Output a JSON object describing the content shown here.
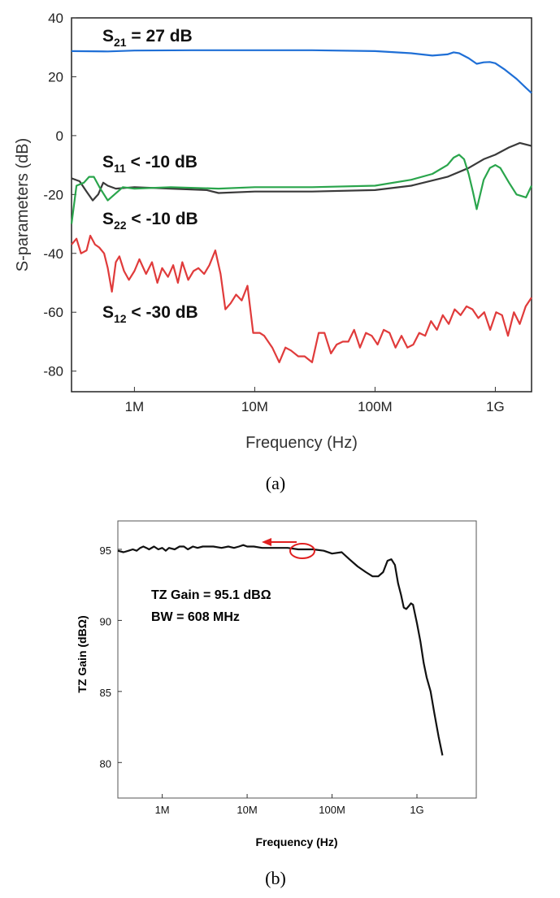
{
  "chart_data": [
    {
      "type": "line",
      "panel": "(a)",
      "xlabel": "Frequency (Hz)",
      "ylabel": "S-parameters (dB)",
      "x_scale": "log",
      "xlim": [
        300000,
        2000000000
      ],
      "ylim": [
        -87,
        40
      ],
      "x_ticks": [
        {
          "value": 1000000,
          "label": "1M"
        },
        {
          "value": 10000000,
          "label": "10M"
        },
        {
          "value": 100000000,
          "label": "100M"
        },
        {
          "value": 1000000000,
          "label": "1G"
        }
      ],
      "y_ticks": [
        40,
        20,
        0,
        -20,
        -40,
        -60,
        -80
      ],
      "annotations": [
        {
          "main": "S",
          "sub": "21",
          "rest": " = 27 dB"
        },
        {
          "main": "S",
          "sub": "11",
          "rest": " < -10 dB"
        },
        {
          "main": "S",
          "sub": "22",
          "rest": " < -10 dB"
        },
        {
          "main": "S",
          "sub": "12",
          "rest": " < -30 dB"
        }
      ],
      "series": [
        {
          "key": "S21",
          "color": "#1f6fd6",
          "x": [
            300000,
            600000,
            1000000,
            3000000,
            10000000,
            30000000,
            100000000,
            200000000,
            300000000,
            400000000,
            450000000,
            500000000,
            600000000,
            700000000,
            800000000,
            900000000,
            1000000000,
            1200000000,
            1500000000,
            1800000000,
            2000000000
          ],
          "y": [
            28.7,
            28.6,
            28.9,
            29.0,
            29.0,
            29.0,
            28.7,
            28.0,
            27.2,
            27.6,
            28.3,
            28.0,
            26.3,
            24.4,
            24.9,
            25.0,
            24.6,
            22.4,
            19.3,
            16.2,
            14.5
          ]
        },
        {
          "key": "S11",
          "color": "#3a3a3a",
          "x": [
            300000,
            350000,
            400000,
            450000,
            500000,
            550000,
            600000,
            700000,
            1000000,
            2000000,
            4000000,
            5000000,
            10000000,
            30000000,
            100000000,
            200000000,
            400000000,
            600000000,
            800000000,
            1000000000,
            1300000000,
            1600000000,
            2000000000
          ],
          "y": [
            -14.5,
            -15.5,
            -19.0,
            -22.0,
            -20.0,
            -16.0,
            -17.0,
            -18.0,
            -17.5,
            -18.0,
            -18.5,
            -19.5,
            -19.0,
            -19.0,
            -18.5,
            -17.0,
            -14.0,
            -11.0,
            -8.0,
            -6.5,
            -4.0,
            -2.5,
            -3.5
          ]
        },
        {
          "key": "S22",
          "color": "#2aa54c",
          "x": [
            300000,
            330000,
            380000,
            420000,
            460000,
            520000,
            600000,
            800000,
            1000000,
            2000000,
            5000000,
            10000000,
            30000000,
            100000000,
            200000000,
            300000000,
            400000000,
            450000000,
            500000000,
            550000000,
            600000000,
            650000000,
            700000000,
            800000000,
            900000000,
            1000000000,
            1100000000,
            1300000000,
            1500000000,
            1800000000,
            2000000000
          ],
          "y": [
            -30.0,
            -17.0,
            -16.0,
            -14.0,
            -14.0,
            -18.0,
            -22.0,
            -17.5,
            -18.0,
            -17.5,
            -18.0,
            -17.5,
            -17.5,
            -17.0,
            -15.0,
            -13.0,
            -10.0,
            -7.5,
            -6.5,
            -8.0,
            -13.0,
            -19.0,
            -25.0,
            -15.0,
            -11.0,
            -10.0,
            -11.0,
            -16.0,
            -20.0,
            -21.0,
            -17.0
          ]
        },
        {
          "key": "S12",
          "color": "#e03b3b",
          "x": [
            300000,
            330000,
            360000,
            400000,
            430000,
            470000,
            510000,
            560000,
            600000,
            650000,
            700000,
            750000,
            820000,
            900000,
            1000000,
            1100000,
            1250000,
            1400000,
            1550000,
            1700000,
            1900000,
            2100000,
            2300000,
            2500000,
            2800000,
            3100000,
            3400000,
            3800000,
            4200000,
            4700000,
            5200000,
            5700000,
            6300000,
            7000000,
            7800000,
            8700000,
            9700000,
            11000000,
            12000000,
            14000000,
            16000000,
            18000000,
            20000000,
            23000000,
            26000000,
            30000000,
            34000000,
            38000000,
            43000000,
            48000000,
            54000000,
            60000000,
            67000000,
            75000000,
            84000000,
            94000000,
            105000000,
            118000000,
            132000000,
            148000000,
            166000000,
            186000000,
            208000000,
            233000000,
            261000000,
            292000000,
            327000000,
            366000000,
            410000000,
            459000000,
            514000000,
            576000000,
            645000000,
            722000000,
            809000000,
            906000000,
            1015000000,
            1137000000,
            1273000000,
            1426000000,
            1597000000,
            1789000000,
            2000000000
          ],
          "y": [
            -37.0,
            -35.0,
            -40.0,
            -39.0,
            -34.0,
            -37.0,
            -38.0,
            -40.0,
            -45.0,
            -53.0,
            -43.0,
            -41.0,
            -46.0,
            -49.0,
            -46.0,
            -42.0,
            -47.0,
            -43.0,
            -50.0,
            -45.0,
            -48.0,
            -44.0,
            -50.0,
            -43.0,
            -49.0,
            -46.0,
            -45.0,
            -47.0,
            -44.0,
            -39.0,
            -47.0,
            -59.0,
            -57.0,
            -54.0,
            -56.0,
            -51.0,
            -67.0,
            -67.0,
            -68.0,
            -72.0,
            -77.0,
            -72.0,
            -73.0,
            -75.0,
            -75.0,
            -77.0,
            -67.0,
            -67.0,
            -74.0,
            -71.0,
            -70.0,
            -70.0,
            -66.0,
            -72.0,
            -67.0,
            -68.0,
            -71.0,
            -66.0,
            -67.0,
            -72.0,
            -68.0,
            -72.0,
            -71.0,
            -67.0,
            -68.0,
            -63.0,
            -66.0,
            -61.0,
            -64.0,
            -59.0,
            -61.0,
            -58.0,
            -59.0,
            -62.0,
            -60.0,
            -66.0,
            -60.0,
            -61.0,
            -68.0,
            -60.0,
            -64.0,
            -58.0,
            -55.0
          ]
        }
      ]
    },
    {
      "type": "line",
      "panel": "(b)",
      "xlabel": "Frequency (Hz)",
      "ylabel": "TZ Gain (dBΩ)",
      "x_scale": "log",
      "xlim": [
        300000,
        5000000000
      ],
      "ylim": [
        77.5,
        97
      ],
      "x_ticks": [
        {
          "value": 1000000,
          "label": "1M"
        },
        {
          "value": 10000000,
          "label": "10M"
        },
        {
          "value": 100000000,
          "label": "100M"
        },
        {
          "value": 1000000000,
          "label": "1G"
        }
      ],
      "y_ticks": [
        95,
        90,
        85,
        80
      ],
      "annotation_lines": [
        "TZ Gain =  95.1 dBΩ",
        "BW = 608 MHz"
      ],
      "series": [
        {
          "key": "TZ Gain",
          "color": "#111111",
          "x": [
            300000,
            350000,
            400000,
            450000,
            500000,
            550000,
            600000,
            650000,
            700000,
            800000,
            900000,
            1000000,
            1100000,
            1200000,
            1400000,
            1600000,
            1800000,
            2000000,
            2300000,
            2600000,
            3000000,
            3500000,
            4000000,
            5000000,
            6000000,
            7000000,
            8000000,
            9000000,
            10000000,
            12000000,
            15000000,
            20000000,
            30000000,
            40000000,
            60000000,
            80000000,
            100000000,
            130000000,
            160000000,
            200000000,
            250000000,
            300000000,
            350000000,
            400000000,
            450000000,
            500000000,
            550000000,
            600000000,
            650000000,
            700000000,
            750000000,
            800000000,
            850000000,
            900000000,
            1000000000,
            1100000000,
            1200000000,
            1300000000,
            1450000000,
            1600000000,
            1800000000,
            2000000000
          ],
          "y": [
            94.9,
            94.8,
            94.9,
            95.0,
            94.9,
            95.1,
            95.2,
            95.1,
            95.0,
            95.2,
            95.0,
            95.1,
            94.9,
            95.1,
            95.0,
            95.2,
            95.2,
            95.0,
            95.2,
            95.1,
            95.2,
            95.2,
            95.2,
            95.1,
            95.2,
            95.1,
            95.2,
            95.3,
            95.2,
            95.2,
            95.1,
            95.1,
            95.1,
            95.0,
            95.0,
            94.9,
            94.7,
            94.8,
            94.3,
            93.8,
            93.4,
            93.1,
            93.1,
            93.4,
            94.2,
            94.3,
            93.9,
            92.6,
            91.8,
            90.9,
            90.8,
            91.0,
            91.2,
            91.1,
            89.8,
            88.5,
            87.0,
            86.0,
            85.0,
            83.5,
            81.8,
            80.5
          ]
        }
      ]
    }
  ],
  "captions": {
    "a": "(a)",
    "b": "(b)"
  }
}
